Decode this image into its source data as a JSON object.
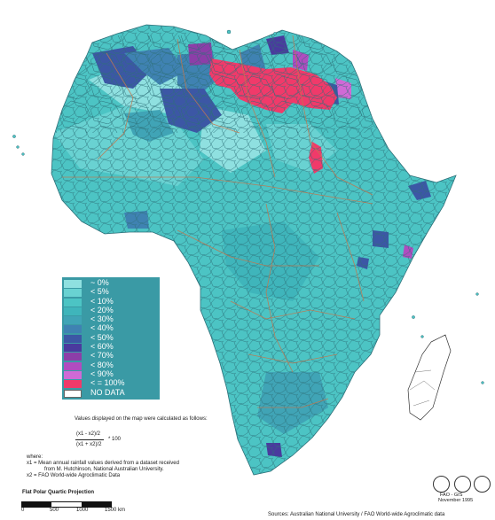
{
  "legend": {
    "items": [
      {
        "label": "~ 0%",
        "color": "#8fe0e0"
      },
      {
        "label": "< 5%",
        "color": "#69d2d2"
      },
      {
        "label": "< 10%",
        "color": "#4cc4c4"
      },
      {
        "label": "< 20%",
        "color": "#3fb5bb"
      },
      {
        "label": "< 30%",
        "color": "#40a4b6"
      },
      {
        "label": "< 40%",
        "color": "#3f82b2"
      },
      {
        "label": "< 50%",
        "color": "#3c57a5"
      },
      {
        "label": "< 60%",
        "color": "#4a3a9e"
      },
      {
        "label": "< 70%",
        "color": "#8c3ea8"
      },
      {
        "label": "< 80%",
        "color": "#b04cc0"
      },
      {
        "label": "< 90%",
        "color": "#d06ad6"
      },
      {
        "label": "< = 100%",
        "color": "#f03a6a"
      }
    ],
    "no_data": "NO DATA"
  },
  "notes": {
    "values_line": "Values displayed on the map were calculated as follows:",
    "numerator": "(x1 - x2)/2",
    "times": "* 100",
    "denominator": "(x1 + x2)/2",
    "where": "where:",
    "x1_line1": "x1 = Mean annual rainfall values derived from a dataset received",
    "x1_line2": "from M. Hutchinson, National Australian University.",
    "x2_line": "x2 = FAO World-wide Agroclimatic Data",
    "projection": "Flat Polar Quartic Projection",
    "scale": [
      "0",
      "500",
      "1000",
      "1500 km"
    ]
  },
  "credits": {
    "org": "FAO - GIS",
    "date": "November 1995",
    "sources": "Sources: Australian National University / FAO World-wide Agroclimatic data"
  },
  "colors": {
    "background": "#ffffff",
    "land_base": "#4cc4c4",
    "borders": "#c07850",
    "cell_lines": "#2c6f78",
    "hotspot": "#f03a6a"
  }
}
